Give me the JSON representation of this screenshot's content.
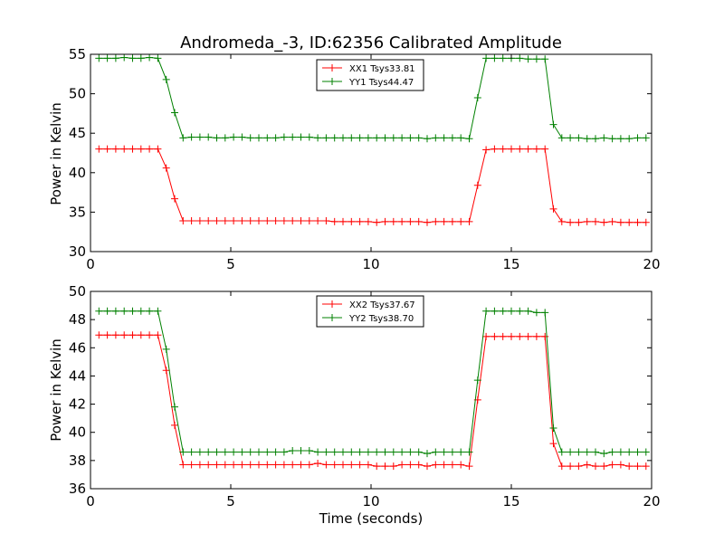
{
  "chart_data": [
    {
      "type": "line",
      "title": "Andromeda_-3, ID:62356 Calibrated Amplitude",
      "xlabel": "",
      "ylabel": "Power in Kelvin",
      "xlim": [
        0,
        20
      ],
      "ylim": [
        30,
        55
      ],
      "xticks": [
        0,
        5,
        10,
        15,
        20
      ],
      "yticks": [
        30,
        35,
        40,
        45,
        50,
        55
      ],
      "legend_position": "top-center",
      "grid": false,
      "x": [
        0.3,
        0.6,
        0.9,
        1.2,
        1.5,
        1.8,
        2.1,
        2.4,
        2.7,
        3.0,
        3.3,
        3.6,
        3.9,
        4.2,
        4.5,
        4.8,
        5.1,
        5.4,
        5.7,
        6.0,
        6.3,
        6.6,
        6.9,
        7.2,
        7.5,
        7.8,
        8.1,
        8.4,
        8.7,
        9.0,
        9.3,
        9.6,
        9.9,
        10.2,
        10.5,
        10.8,
        11.1,
        11.4,
        11.7,
        12.0,
        12.3,
        12.6,
        12.9,
        13.2,
        13.5,
        13.8,
        14.1,
        14.4,
        14.7,
        15.0,
        15.3,
        15.6,
        15.9,
        16.2,
        16.5,
        16.8,
        17.1,
        17.4,
        17.7,
        18.0,
        18.3,
        18.6,
        18.9,
        19.2,
        19.5,
        19.8
      ],
      "series": [
        {
          "name": "XX1 Tsys33.81",
          "color": "#ff0000",
          "values": [
            43.0,
            43.0,
            43.0,
            43.0,
            43.0,
            43.0,
            43.0,
            43.0,
            40.6,
            36.7,
            33.9,
            33.9,
            33.9,
            33.9,
            33.9,
            33.9,
            33.9,
            33.9,
            33.9,
            33.9,
            33.9,
            33.9,
            33.9,
            33.9,
            33.9,
            33.9,
            33.9,
            33.9,
            33.8,
            33.8,
            33.8,
            33.8,
            33.8,
            33.7,
            33.8,
            33.8,
            33.8,
            33.8,
            33.8,
            33.7,
            33.8,
            33.8,
            33.8,
            33.8,
            33.8,
            38.4,
            42.9,
            43.0,
            43.0,
            43.0,
            43.0,
            43.0,
            43.0,
            43.0,
            35.4,
            33.8,
            33.7,
            33.7,
            33.8,
            33.8,
            33.7,
            33.8,
            33.7,
            33.7,
            33.7,
            33.7
          ]
        },
        {
          "name": "YY1 Tsys44.47",
          "color": "#008000",
          "values": [
            54.5,
            54.5,
            54.5,
            54.6,
            54.5,
            54.5,
            54.6,
            54.5,
            51.8,
            47.6,
            44.4,
            44.5,
            44.5,
            44.5,
            44.4,
            44.4,
            44.5,
            44.5,
            44.4,
            44.4,
            44.4,
            44.4,
            44.5,
            44.5,
            44.5,
            44.5,
            44.4,
            44.4,
            44.4,
            44.4,
            44.4,
            44.4,
            44.4,
            44.4,
            44.4,
            44.4,
            44.4,
            44.4,
            44.4,
            44.3,
            44.4,
            44.4,
            44.4,
            44.4,
            44.3,
            49.5,
            54.5,
            54.5,
            54.5,
            54.5,
            54.5,
            54.4,
            54.4,
            54.4,
            46.1,
            44.4,
            44.4,
            44.4,
            44.3,
            44.3,
            44.4,
            44.3,
            44.3,
            44.3,
            44.4,
            44.4
          ]
        }
      ]
    },
    {
      "type": "line",
      "title": "",
      "xlabel": "Time (seconds)",
      "ylabel": "Power in Kelvin",
      "xlim": [
        0,
        20
      ],
      "ylim": [
        36,
        50
      ],
      "xticks": [
        0,
        5,
        10,
        15,
        20
      ],
      "yticks": [
        36,
        38,
        40,
        42,
        44,
        46,
        48,
        50
      ],
      "legend_position": "top-center",
      "grid": false,
      "x": [
        0.3,
        0.6,
        0.9,
        1.2,
        1.5,
        1.8,
        2.1,
        2.4,
        2.7,
        3.0,
        3.3,
        3.6,
        3.9,
        4.2,
        4.5,
        4.8,
        5.1,
        5.4,
        5.7,
        6.0,
        6.3,
        6.6,
        6.9,
        7.2,
        7.5,
        7.8,
        8.1,
        8.4,
        8.7,
        9.0,
        9.3,
        9.6,
        9.9,
        10.2,
        10.5,
        10.8,
        11.1,
        11.4,
        11.7,
        12.0,
        12.3,
        12.6,
        12.9,
        13.2,
        13.5,
        13.8,
        14.1,
        14.4,
        14.7,
        15.0,
        15.3,
        15.6,
        15.9,
        16.2,
        16.5,
        16.8,
        17.1,
        17.4,
        17.7,
        18.0,
        18.3,
        18.6,
        18.9,
        19.2,
        19.5,
        19.8
      ],
      "series": [
        {
          "name": "XX2 Tsys37.67",
          "color": "#ff0000",
          "values": [
            46.9,
            46.9,
            46.9,
            46.9,
            46.9,
            46.9,
            46.9,
            46.9,
            44.4,
            40.5,
            37.7,
            37.7,
            37.7,
            37.7,
            37.7,
            37.7,
            37.7,
            37.7,
            37.7,
            37.7,
            37.7,
            37.7,
            37.7,
            37.7,
            37.7,
            37.7,
            37.8,
            37.7,
            37.7,
            37.7,
            37.7,
            37.7,
            37.7,
            37.6,
            37.6,
            37.6,
            37.7,
            37.7,
            37.7,
            37.6,
            37.7,
            37.7,
            37.7,
            37.7,
            37.6,
            42.3,
            46.8,
            46.8,
            46.8,
            46.8,
            46.8,
            46.8,
            46.8,
            46.8,
            39.2,
            37.6,
            37.6,
            37.6,
            37.7,
            37.6,
            37.6,
            37.7,
            37.7,
            37.6,
            37.6,
            37.6
          ]
        },
        {
          "name": "YY2 Tsys38.70",
          "color": "#008000",
          "values": [
            48.6,
            48.6,
            48.6,
            48.6,
            48.6,
            48.6,
            48.6,
            48.6,
            45.9,
            41.8,
            38.6,
            38.6,
            38.6,
            38.6,
            38.6,
            38.6,
            38.6,
            38.6,
            38.6,
            38.6,
            38.6,
            38.6,
            38.6,
            38.7,
            38.7,
            38.7,
            38.6,
            38.6,
            38.6,
            38.6,
            38.6,
            38.6,
            38.6,
            38.6,
            38.6,
            38.6,
            38.6,
            38.6,
            38.6,
            38.5,
            38.6,
            38.6,
            38.6,
            38.6,
            38.6,
            43.7,
            48.6,
            48.6,
            48.6,
            48.6,
            48.6,
            48.6,
            48.5,
            48.5,
            40.3,
            38.6,
            38.6,
            38.6,
            38.6,
            38.6,
            38.5,
            38.6,
            38.6,
            38.6,
            38.6,
            38.6
          ]
        }
      ]
    }
  ]
}
